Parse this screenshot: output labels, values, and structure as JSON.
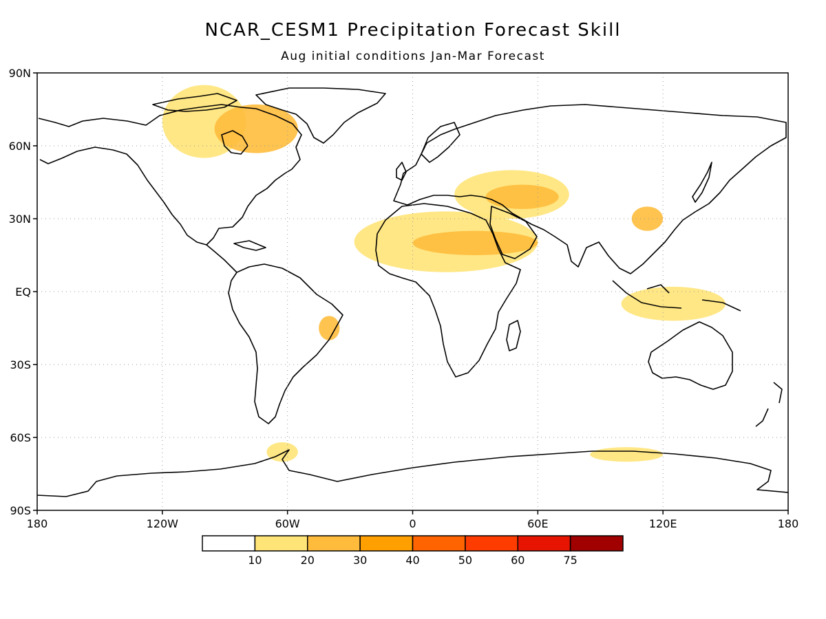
{
  "title": "NCAR_CESM1 Precipitation Forecast Skill",
  "subtitle": "Aug initial conditions   Jan-Mar Forecast",
  "lat_ticks": [
    "90N",
    "60N",
    "30N",
    "EQ",
    "30S",
    "60S",
    "90S"
  ],
  "lon_ticks": [
    "180",
    "120W",
    "60W",
    "0",
    "60E",
    "120E",
    "180"
  ],
  "colorbar": {
    "labels": [
      "10",
      "20",
      "30",
      "40",
      "50",
      "60",
      "75"
    ],
    "colors": [
      "#ffffff",
      "#ffe478",
      "#ffbc3c",
      "#ffa000",
      "#ff6400",
      "#ff3c00",
      "#e61400",
      "#a00000"
    ]
  },
  "chart_data": {
    "type": "heatmap",
    "title": "NCAR_CESM1 Precipitation Forecast Skill",
    "subtitle": "Aug initial conditions   Jan-Mar Forecast",
    "variable": "precipitation forecast skill",
    "xlim": [
      -180,
      180
    ],
    "ylim": [
      -90,
      90
    ],
    "grid": true,
    "levels": [
      10,
      20,
      30,
      40,
      50,
      60,
      75
    ],
    "regions": [
      {
        "name": "",
        "lon": [
          -120,
          -80
        ],
        "lat": [
          55,
          85
        ],
        "level": 10
      },
      {
        "name": "",
        "lon": [
          -95,
          -55
        ],
        "lat": [
          57,
          77
        ],
        "level": 20
      },
      {
        "name": "",
        "lon": [
          -28,
          60
        ],
        "lat": [
          8,
          33
        ],
        "level": 10
      },
      {
        "name": "",
        "lon": [
          0,
          60
        ],
        "lat": [
          15,
          25
        ],
        "level": 20
      },
      {
        "name": "",
        "lon": [
          20,
          75
        ],
        "lat": [
          30,
          50
        ],
        "level": 10
      },
      {
        "name": "",
        "lon": [
          35,
          70
        ],
        "lat": [
          34,
          44
        ],
        "level": 20
      },
      {
        "name": "",
        "lon": [
          -45,
          -35
        ],
        "lat": [
          -20,
          -10
        ],
        "level": 20
      },
      {
        "name": "",
        "lon": [
          100,
          150
        ],
        "lat": [
          -12,
          2
        ],
        "level": 10
      },
      {
        "name": "",
        "lon": [
          105,
          120
        ],
        "lat": [
          25,
          35
        ],
        "level": 20
      },
      {
        "name": "",
        "lon": [
          -70,
          -55
        ],
        "lat": [
          -70,
          -62
        ],
        "level": 10
      },
      {
        "name": "",
        "lon": [
          85,
          120
        ],
        "lat": [
          -70,
          -64
        ],
        "level": 10
      }
    ]
  }
}
